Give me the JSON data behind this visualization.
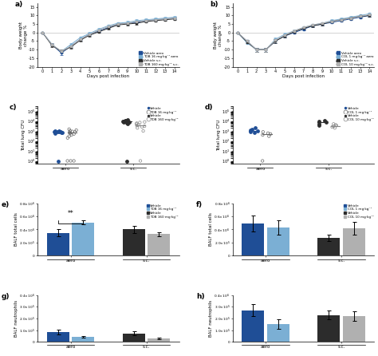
{
  "days": [
    0,
    1,
    2,
    3,
    4,
    5,
    6,
    7,
    8,
    9,
    10,
    11,
    12,
    13,
    14
  ],
  "panel_a": {
    "title": "a)",
    "lines": {
      "vehicle_aero": {
        "mean": [
          0,
          -7,
          -12,
          -8,
          -4,
          -1,
          1,
          3,
          5,
          5.5,
          6,
          7,
          7.5,
          8,
          8.5
        ],
        "sem": [
          0,
          0.8,
          1,
          1,
          0.8,
          0.8,
          0.7,
          0.7,
          0.7,
          0.7,
          0.7,
          0.7,
          0.7,
          0.7,
          0.7
        ]
      },
      "tob16_aero": {
        "mean": [
          0,
          -7,
          -11,
          -7,
          -3,
          -0.5,
          2,
          4,
          5.5,
          6,
          7,
          7.5,
          8,
          8.5,
          9
        ],
        "sem": [
          0,
          0.8,
          1,
          1,
          0.8,
          0.8,
          0.7,
          0.7,
          0.7,
          0.7,
          0.7,
          0.7,
          0.7,
          0.7,
          0.7
        ]
      },
      "vehicle_sc": {
        "mean": [
          0,
          -7.5,
          -11,
          -8.5,
          -4.5,
          -1.5,
          0.5,
          2.5,
          4.5,
          5,
          5.5,
          6.5,
          7,
          7.5,
          8
        ],
        "sem": [
          0,
          0.8,
          1,
          1,
          0.8,
          0.8,
          0.7,
          0.7,
          0.7,
          0.7,
          0.7,
          0.7,
          0.7,
          0.7,
          0.7
        ]
      },
      "tob160_sc": {
        "mean": [
          0,
          -7,
          -11,
          -8,
          -4,
          -1,
          1.5,
          3.5,
          5,
          5.5,
          6.5,
          7,
          7.5,
          8,
          8.5
        ],
        "sem": [
          0,
          0.8,
          1,
          1,
          0.8,
          0.8,
          0.7,
          0.7,
          0.7,
          0.7,
          0.7,
          0.7,
          0.7,
          0.7,
          0.7
        ]
      }
    },
    "legend": [
      "Vehicle aero",
      "TOB 16 mg·kg⁻¹ aero",
      "Vehicle s.c.",
      "TOB 160 mg·kg⁻¹ s.c."
    ],
    "colors": [
      "#1f4e96",
      "#7bafd4",
      "#2c2c2c",
      "#b0b0b0"
    ]
  },
  "panel_b": {
    "title": "b)",
    "lines": {
      "vehicle_aero": {
        "mean": [
          0,
          -5,
          -10,
          -10,
          -5,
          -2,
          0,
          2,
          4,
          5,
          6,
          7,
          8,
          9,
          10
        ],
        "sem": [
          0,
          0.8,
          1.2,
          1.2,
          1,
          0.8,
          0.7,
          0.7,
          0.7,
          0.7,
          0.7,
          0.7,
          0.7,
          0.7,
          0.8
        ]
      },
      "col1_aero": {
        "mean": [
          0,
          -6,
          -10,
          -10,
          -4,
          -1,
          1,
          3,
          4.5,
          5.5,
          7,
          8,
          9,
          10,
          11
        ],
        "sem": [
          0,
          0.8,
          1.2,
          1.2,
          1,
          0.8,
          0.7,
          0.7,
          0.7,
          0.7,
          0.7,
          0.7,
          0.7,
          0.7,
          0.8
        ]
      },
      "vehicle_sc": {
        "mean": [
          0,
          -5.5,
          -10,
          -10,
          -5,
          -2,
          0.5,
          2.5,
          4,
          5,
          6.5,
          7.5,
          8.5,
          9.5,
          10
        ],
        "sem": [
          0,
          0.8,
          1.2,
          1.2,
          1,
          0.8,
          0.7,
          0.7,
          0.7,
          0.7,
          0.7,
          0.7,
          0.7,
          0.7,
          0.8
        ]
      },
      "col10_sc": {
        "mean": [
          0,
          -5,
          -10,
          -10,
          -4.5,
          -1.5,
          1,
          3,
          4.5,
          5.5,
          6.5,
          7.5,
          8.5,
          9.5,
          10.5
        ],
        "sem": [
          0,
          0.8,
          1.2,
          1.2,
          1,
          0.8,
          0.7,
          0.7,
          0.7,
          0.7,
          0.7,
          0.7,
          0.7,
          0.7,
          0.8
        ]
      }
    },
    "legend": [
      "Vehicle aero",
      "COL 1 mg·kg⁻¹ aero",
      "Vehicle s.c.",
      "COL 10 mg·kg⁻¹ s.c."
    ],
    "colors": [
      "#1f4e96",
      "#7bafd4",
      "#2c2c2c",
      "#b0b0b0"
    ]
  },
  "panel_c": {
    "title": "c)",
    "legend": [
      "Vehicle",
      "TOB 16 mg·kg⁻¹",
      "Vehicle",
      "TOB 160 mg·kg⁻¹"
    ],
    "aero_vehicle": [
      800,
      700,
      900,
      1100,
      600,
      950,
      850,
      750,
      800
    ],
    "aero_drug": [
      500,
      200,
      1200,
      800,
      700,
      1500,
      300,
      600,
      900,
      400,
      1000
    ],
    "sc_vehicle": [
      5000,
      8000,
      12000,
      9000,
      11000,
      7000,
      10000,
      6000,
      13000,
      8500,
      9500
    ],
    "sc_drug": [
      2000,
      5000,
      3000,
      8000,
      1000,
      4000,
      6000,
      2500,
      7000,
      3500
    ],
    "aero_vehicle_below": 1,
    "aero_drug_below": 3,
    "sc_vehicle_below": 1,
    "sc_drug_below": 1
  },
  "panel_d": {
    "title": "d)",
    "legend": [
      "Vehicle",
      "COL 1 mg·kg⁻¹",
      "Vehicle",
      "COL 10 mg·kg⁻¹"
    ],
    "aero_vehicle": [
      1500,
      1000,
      2000,
      700,
      800,
      1200
    ],
    "aero_drug": [
      800,
      500,
      600,
      300,
      400
    ],
    "sc_vehicle": [
      8000,
      12000,
      5000,
      9000,
      4000
    ],
    "sc_drug": [
      3000,
      4000,
      2000,
      5000,
      3500,
      2500
    ],
    "aero_vehicle_below": 0,
    "aero_drug_below": 1,
    "sc_vehicle_below": 0,
    "sc_drug_below": 0
  },
  "panel_e": {
    "title": "e)",
    "ylabel": "BALF total cells",
    "bars": {
      "vehicle_aero": {
        "mean": 350000,
        "sem": 50000,
        "color": "#1f4e96"
      },
      "tob16_aero": {
        "mean": 510000,
        "sem": 30000,
        "color": "#7bafd4"
      },
      "vehicle_sc": {
        "mean": 400000,
        "sem": 60000,
        "color": "#2c2c2c"
      },
      "tob160_sc": {
        "mean": 330000,
        "sem": 30000,
        "color": "#b0b0b0"
      }
    },
    "legend": [
      "Vehicle",
      "TOB 16 mg·kg⁻¹",
      "Vehicle",
      "TOB 160 mg·kg⁻¹"
    ],
    "ylim": [
      0,
      800000
    ],
    "yticks": [
      0,
      200000,
      400000,
      600000,
      800000
    ],
    "significance": "**"
  },
  "panel_f": {
    "title": "f)",
    "ylabel": "BALF total cells",
    "bars": {
      "vehicle_aero": {
        "mean": 490000,
        "sem": 120000,
        "color": "#1f4e96"
      },
      "col1_aero": {
        "mean": 430000,
        "sem": 110000,
        "color": "#7bafd4"
      },
      "vehicle_sc": {
        "mean": 270000,
        "sem": 50000,
        "color": "#2c2c2c"
      },
      "col10_sc": {
        "mean": 420000,
        "sem": 100000,
        "color": "#b0b0b0"
      }
    },
    "legend": [
      "Vehicle",
      "COL 1 mg·kg⁻¹",
      "Vehicle",
      "COL 10 mg·kg⁻¹"
    ],
    "ylim": [
      0,
      800000
    ],
    "yticks": [
      0,
      200000,
      400000,
      600000,
      800000
    ]
  },
  "panel_g": {
    "title": "g)",
    "ylabel": "BALF neutrophils",
    "bars": {
      "vehicle_aero": {
        "mean": 85000,
        "sem": 20000,
        "color": "#1f4e96"
      },
      "tob16_aero": {
        "mean": 42000,
        "sem": 8000,
        "color": "#7bafd4"
      },
      "vehicle_sc": {
        "mean": 72000,
        "sem": 15000,
        "color": "#2c2c2c"
      },
      "tob160_sc": {
        "mean": 28000,
        "sem": 8000,
        "color": "#b0b0b0"
      }
    },
    "ylim": [
      0,
      400000
    ],
    "yticks": [
      0,
      100000,
      200000,
      300000,
      400000
    ]
  },
  "panel_h": {
    "title": "h)",
    "ylabel": "BALF neutrophils",
    "bars": {
      "vehicle_aero": {
        "mean": 270000,
        "sem": 50000,
        "color": "#1f4e96"
      },
      "col1_aero": {
        "mean": 150000,
        "sem": 40000,
        "color": "#7bafd4"
      },
      "vehicle_sc": {
        "mean": 230000,
        "sem": 40000,
        "color": "#2c2c2c"
      },
      "col10_sc": {
        "mean": 220000,
        "sem": 40000,
        "color": "#b0b0b0"
      }
    },
    "ylim": [
      0,
      400000
    ],
    "yticks": [
      0,
      100000,
      200000,
      300000,
      400000
    ]
  }
}
